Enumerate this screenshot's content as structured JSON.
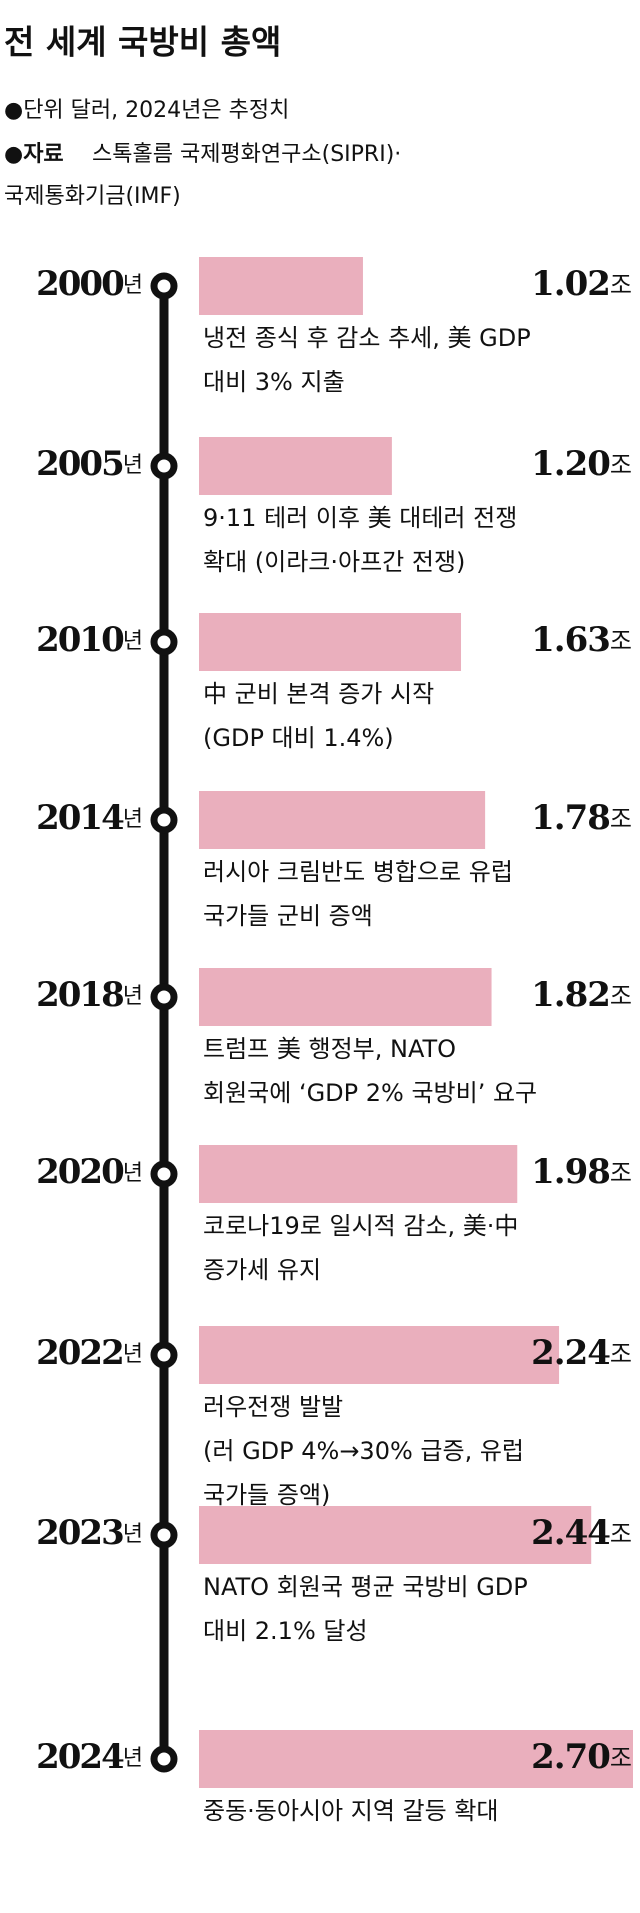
{
  "chart_data": {
    "type": "bar",
    "title": "전 세계 국방비 총액",
    "unit_note": "●단위 달러, 2024년은 추정치",
    "source_label": "●자료",
    "source_lines": [
      "스톡홀름 국제평화연구소(SIPRI)·",
      "국제통화기금(IMF)"
    ],
    "categories": [
      "2000년",
      "2005년",
      "2010년",
      "2014년",
      "2018년",
      "2020년",
      "2022년",
      "2023년",
      "2024년"
    ],
    "values": [
      1.02,
      1.2,
      1.63,
      1.78,
      1.82,
      1.98,
      2.24,
      2.44,
      2.7
    ],
    "value_labels": [
      "1.02조",
      "1.20조",
      "1.63조",
      "1.78조",
      "1.82조",
      "1.98조",
      "2.24조",
      "2.44조",
      "2.70조"
    ],
    "color": "#eaafbd",
    "notes": [
      [
        "냉전 종식 후 감소 추세, 美 GDP",
        "대비 3% 지출"
      ],
      [
        "9·11 테러 이후 美 대테러 전쟁",
        "확대 (이라크·아프간 전쟁)"
      ],
      [
        "中 군비 본격 증가 시작",
        "(GDP 대비 1.4%)"
      ],
      [
        "러시아 크림반도 병합으로 유럽",
        "국가들 군비 증액"
      ],
      [
        "트럼프 美 행정부, NATO",
        "회원국에 ‘GDP 2% 국방비’ 요구"
      ],
      [
        "코로나19로 일시적 감소, 美·中",
        "증가세 유지"
      ],
      [
        "러우전쟁 발발",
        "(러 GDP 4%→30% 급증, 유럽",
        "국가들 증액)"
      ],
      [
        "NATO 회원국 평균 국방비 GDP",
        "대비 2.1% 달성"
      ],
      [
        "중동·동아시아 지역 갈등 확대"
      ]
    ]
  }
}
